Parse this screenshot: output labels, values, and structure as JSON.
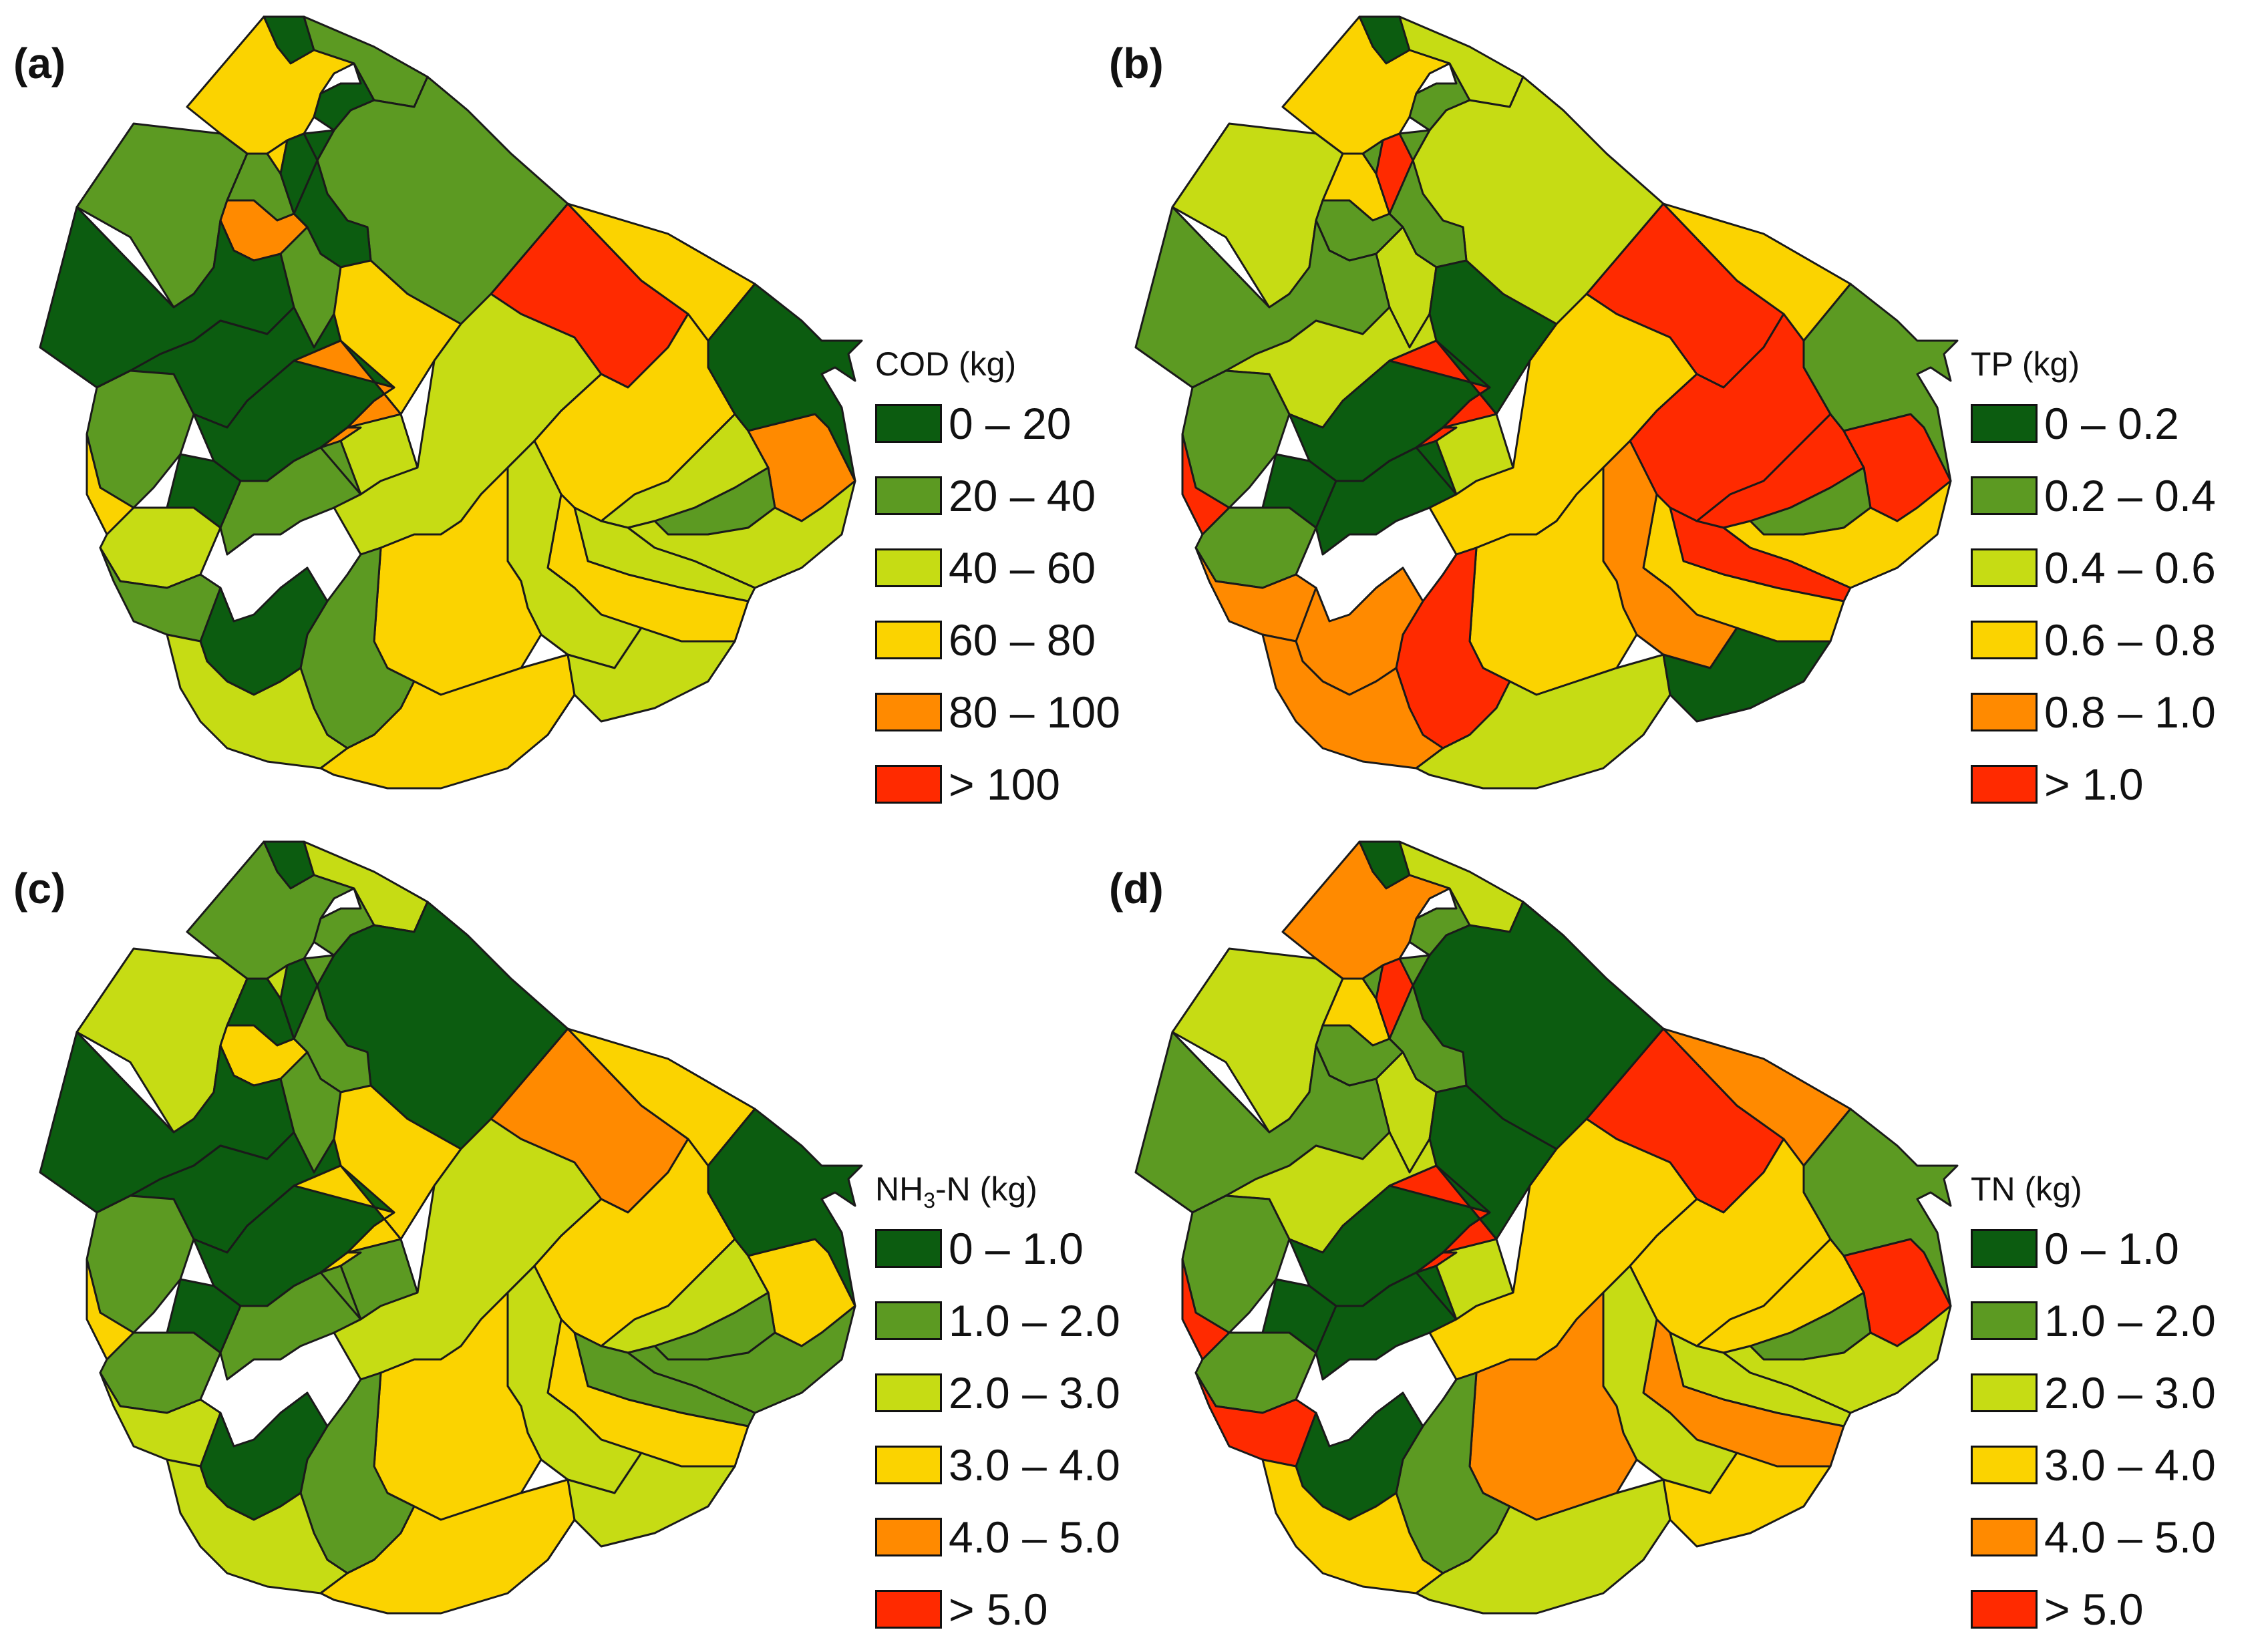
{
  "colors": {
    "c0": "#0c5c10",
    "c1": "#5c9a22",
    "c2": "#c6dc14",
    "c3": "#fbd300",
    "c4": "#ff8a00",
    "c5": "#ff2a00"
  },
  "panels": [
    {
      "id": "a",
      "label": "(a)",
      "legend_title": "COD (kg)",
      "legend": [
        "0 – 20",
        "20 – 40",
        "40 – 60",
        "60 – 80",
        "80 – 100",
        "> 100"
      ]
    },
    {
      "id": "b",
      "label": "(b)",
      "legend_title": "TP (kg)",
      "legend": [
        "0 – 0.2",
        "0.2 – 0.4",
        "0.4 – 0.6",
        "0.6 – 0.8",
        "0.8 – 1.0",
        "> 1.0"
      ]
    },
    {
      "id": "c",
      "label": "(c)",
      "legend_title_main": "NH",
      "legend_title_sub": "3",
      "legend_title_rest": "-N (kg)",
      "legend": [
        "0 – 1.0",
        "1.0 – 2.0",
        "2.0 – 3.0",
        "3.0 – 4.0",
        "4.0 – 5.0",
        "> 5.0"
      ]
    },
    {
      "id": "d",
      "label": "(d)",
      "legend_title": "TN (kg)",
      "legend": [
        "0 – 1.0",
        "1.0 – 2.0",
        "2.0 – 3.0",
        "3.0 – 4.0",
        "4.0 – 5.0",
        "> 5.0"
      ]
    }
  ],
  "region_classes": {
    "a": [
      0,
      1,
      3,
      1,
      0,
      1,
      0,
      1,
      3,
      0,
      4,
      1,
      3,
      0,
      0,
      1,
      0,
      4,
      2,
      3,
      0,
      2,
      1,
      1,
      2,
      5,
      3,
      0,
      3,
      2,
      4,
      1,
      2,
      2,
      3,
      2,
      3,
      1,
      0,
      2,
      3,
      2
    ],
    "b": [
      0,
      2,
      3,
      2,
      1,
      2,
      1,
      3,
      1,
      5,
      1,
      2,
      0,
      1,
      2,
      1,
      0,
      5,
      2,
      5,
      0,
      1,
      0,
      4,
      3,
      5,
      3,
      1,
      5,
      5,
      5,
      1,
      3,
      5,
      3,
      4,
      3,
      5,
      4,
      4,
      2,
      0
    ],
    "c": [
      0,
      2,
      1,
      2,
      1,
      0,
      1,
      0,
      2,
      0,
      3,
      1,
      3,
      0,
      0,
      1,
      0,
      3,
      1,
      3,
      0,
      1,
      1,
      2,
      2,
      4,
      3,
      0,
      3,
      2,
      3,
      1,
      1,
      1,
      3,
      2,
      3,
      1,
      0,
      2,
      3,
      2
    ],
    "d": [
      0,
      2,
      4,
      2,
      1,
      0,
      1,
      3,
      1,
      5,
      1,
      2,
      0,
      1,
      2,
      1,
      0,
      5,
      2,
      5,
      0,
      1,
      0,
      5,
      3,
      5,
      4,
      1,
      3,
      3,
      5,
      1,
      2,
      2,
      4,
      2,
      4,
      1,
      0,
      3,
      2,
      3
    ]
  }
}
